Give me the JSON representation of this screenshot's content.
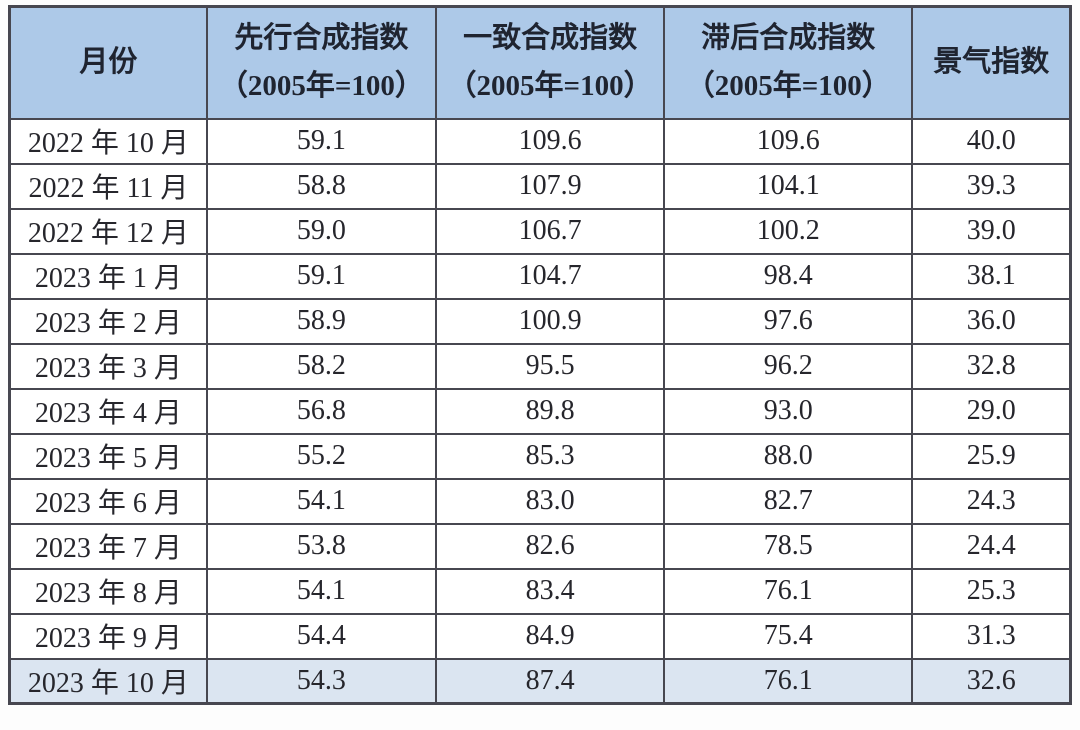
{
  "page": {
    "background": "#fdfdfd"
  },
  "table": {
    "columns": [
      {
        "key": "month",
        "title": "月份",
        "subtitle": ""
      },
      {
        "key": "leading-index",
        "title": "先行合成指数",
        "subtitle": "（2005年=100）"
      },
      {
        "key": "coincident-index",
        "title": "一致合成指数",
        "subtitle": "（2005年=100）"
      },
      {
        "key": "lagging-index",
        "title": "滞后合成指数",
        "subtitle": "（2005年=100）"
      },
      {
        "key": "prosperity-index",
        "title": "景气指数",
        "subtitle": ""
      }
    ],
    "rows": [
      {
        "month": "2022 年 10 月",
        "values": [
          "59.1",
          "109.6",
          "109.6",
          "40.0"
        ],
        "highlighted": false
      },
      {
        "month": "2022 年 11 月",
        "values": [
          "58.8",
          "107.9",
          "104.1",
          "39.3"
        ],
        "highlighted": false
      },
      {
        "month": "2022 年 12 月",
        "values": [
          "59.0",
          "106.7",
          "100.2",
          "39.0"
        ],
        "highlighted": false
      },
      {
        "month": "2023 年 1 月",
        "values": [
          "59.1",
          "104.7",
          "98.4",
          "38.1"
        ],
        "highlighted": false
      },
      {
        "month": "2023 年 2 月",
        "values": [
          "58.9",
          "100.9",
          "97.6",
          "36.0"
        ],
        "highlighted": false
      },
      {
        "month": "2023 年 3 月",
        "values": [
          "58.2",
          "95.5",
          "96.2",
          "32.8"
        ],
        "highlighted": false
      },
      {
        "month": "2023 年 4 月",
        "values": [
          "56.8",
          "89.8",
          "93.0",
          "29.0"
        ],
        "highlighted": false
      },
      {
        "month": "2023 年 5 月",
        "values": [
          "55.2",
          "85.3",
          "88.0",
          "25.9"
        ],
        "highlighted": false
      },
      {
        "month": "2023 年 6 月",
        "values": [
          "54.1",
          "83.0",
          "82.7",
          "24.3"
        ],
        "highlighted": false
      },
      {
        "month": "2023 年 7 月",
        "values": [
          "53.8",
          "82.6",
          "78.5",
          "24.4"
        ],
        "highlighted": false
      },
      {
        "month": "2023 年 8 月",
        "values": [
          "54.1",
          "83.4",
          "76.1",
          "25.3"
        ],
        "highlighted": false
      },
      {
        "month": "2023 年 9 月",
        "values": [
          "54.4",
          "84.9",
          "75.4",
          "31.3"
        ],
        "highlighted": false
      },
      {
        "month": "2023 年 10 月",
        "values": [
          "54.3",
          "87.4",
          "76.1",
          "32.6"
        ],
        "highlighted": true
      }
    ],
    "column_widths_pct": [
      18.6,
      21.6,
      21.5,
      23.4,
      14.9
    ],
    "colors": {
      "header_background": "#adc9e8",
      "highlight_row_background": "#dbe5f1",
      "border": "#474750",
      "header_text": "#1f2430",
      "body_text": "#26262c"
    }
  },
  "chart_data": {
    "type": "table",
    "title": "",
    "columns": [
      "月份",
      "先行合成指数（2005年=100）",
      "一致合成指数（2005年=100）",
      "滞后合成指数（2005年=100）",
      "景气指数"
    ],
    "rows": [
      [
        "2022 年 10 月",
        59.1,
        109.6,
        109.6,
        40.0
      ],
      [
        "2022 年 11 月",
        58.8,
        107.9,
        104.1,
        39.3
      ],
      [
        "2022 年 12 月",
        59.0,
        106.7,
        100.2,
        39.0
      ],
      [
        "2023 年 1 月",
        59.1,
        104.7,
        98.4,
        38.1
      ],
      [
        "2023 年 2 月",
        58.9,
        100.9,
        97.6,
        36.0
      ],
      [
        "2023 年 3 月",
        58.2,
        95.5,
        96.2,
        32.8
      ],
      [
        "2023 年 4 月",
        56.8,
        89.8,
        93.0,
        29.0
      ],
      [
        "2023 年 5 月",
        55.2,
        85.3,
        88.0,
        25.9
      ],
      [
        "2023 年 6 月",
        54.1,
        83.0,
        82.7,
        24.3
      ],
      [
        "2023 年 7 月",
        53.8,
        82.6,
        78.5,
        24.4
      ],
      [
        "2023 年 8 月",
        54.1,
        83.4,
        76.1,
        25.3
      ],
      [
        "2023 年 9 月",
        54.4,
        84.9,
        75.4,
        31.3
      ],
      [
        "2023 年 10 月",
        54.3,
        87.4,
        76.1,
        32.6
      ]
    ],
    "notes": "Last row (2023 年 10 月) is highlighted with a pale blue background."
  }
}
